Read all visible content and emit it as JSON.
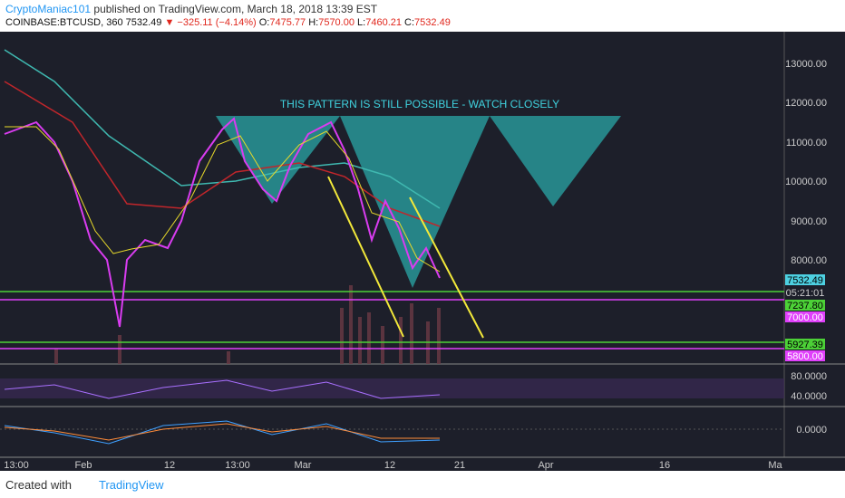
{
  "header": {
    "author": "CryptoManiac101",
    "published": "published on TradingView.com, March 18, 2018 13:39 EST",
    "symbol": "COINBASE:BTCUSD, 360",
    "last": "7532.49",
    "change": "▼ −325.11 (−4.14%)",
    "ohlc": [
      {
        "key": "O:",
        "value": "7475.77"
      },
      {
        "key": "H:",
        "value": "7570.00"
      },
      {
        "key": "L:",
        "value": "7460.21"
      },
      {
        "key": "C:",
        "value": "7532.49"
      }
    ]
  },
  "annotation": "THIS PATTERN IS STILL POSSIBLE - WATCH CLOSELY",
  "price_axis": [
    "13000.00",
    "12000.00",
    "11000.00",
    "10000.00",
    "9000.00",
    "8000.00"
  ],
  "price_tags": [
    "7532.49",
    "05:21:01",
    "7237.80",
    "7000.00",
    "5927.39",
    "5800.00"
  ],
  "rsi_axis": [
    "80.0000",
    "40.0000"
  ],
  "macd_axis": [
    "0.0000"
  ],
  "time_axis": [
    "13:00",
    "Feb",
    "12",
    "13:00",
    "Mar",
    "12",
    "21",
    "Apr",
    "16",
    "Ma"
  ],
  "footer": {
    "created": "Created with",
    "brand": "TradingView"
  }
}
